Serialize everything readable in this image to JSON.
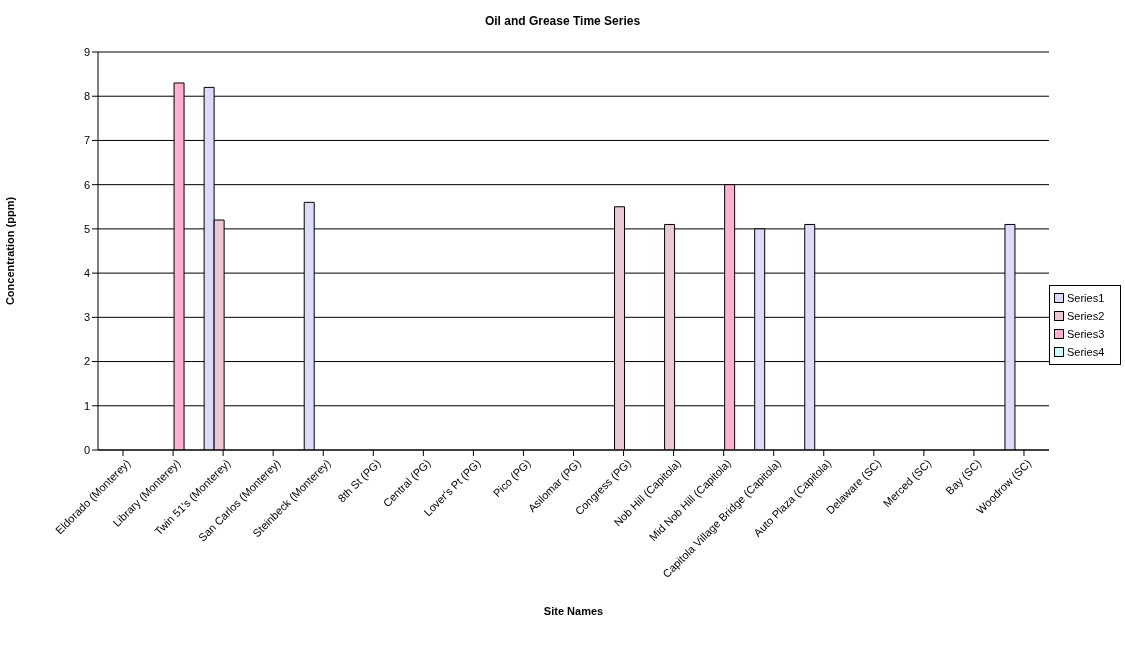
{
  "chart_data": {
    "type": "bar",
    "title": "Oil and Grease Time Series",
    "xlabel": "Site Names",
    "ylabel": "Concentration (ppm)",
    "categories": [
      "Eldorado (Monterey)",
      "Library (Monterey)",
      "Twin 51's (Monterey)",
      "San Carlos (Monterey)",
      "Steinbeck (Monterey)",
      "8th St (PG)",
      "Central (PG)",
      "Lover's Pt (PG)",
      "Pico (PG)",
      "Asilomar (PG)",
      "Congress (PG)",
      "Nob Hill (Capitola)",
      "Mid Nob Hill (Capitola)",
      "Capitola Village Bridge (Capitola)",
      "Auto Plaza (Capitola)",
      "Delaware (SC)",
      "Merced (SC)",
      "Bay (SC)",
      "Woodrow (SC)"
    ],
    "series": [
      {
        "name": "Series1",
        "color": "#dcdcfa",
        "values": [
          null,
          null,
          8.2,
          null,
          5.6,
          null,
          null,
          null,
          null,
          null,
          null,
          null,
          null,
          5.0,
          5.1,
          null,
          null,
          null,
          5.1
        ]
      },
      {
        "name": "Series2",
        "color": "#ecc8d6",
        "values": [
          null,
          null,
          5.2,
          null,
          null,
          null,
          null,
          null,
          null,
          null,
          5.5,
          5.1,
          null,
          null,
          null,
          null,
          null,
          null,
          null
        ]
      },
      {
        "name": "Series3",
        "color": "#ffb0d0",
        "values": [
          null,
          8.3,
          null,
          null,
          null,
          null,
          null,
          null,
          null,
          null,
          null,
          null,
          6.0,
          null,
          null,
          null,
          null,
          null,
          null
        ]
      },
      {
        "name": "Series4",
        "color": "#ccffff",
        "values": [
          null,
          null,
          null,
          null,
          null,
          null,
          null,
          null,
          null,
          null,
          null,
          null,
          null,
          null,
          null,
          null,
          null,
          null,
          null
        ]
      }
    ],
    "ylim": [
      0,
      9
    ],
    "yticks": [
      0,
      1,
      2,
      3,
      4,
      5,
      6,
      7,
      8,
      9
    ],
    "grid": "y",
    "legend": "right"
  }
}
